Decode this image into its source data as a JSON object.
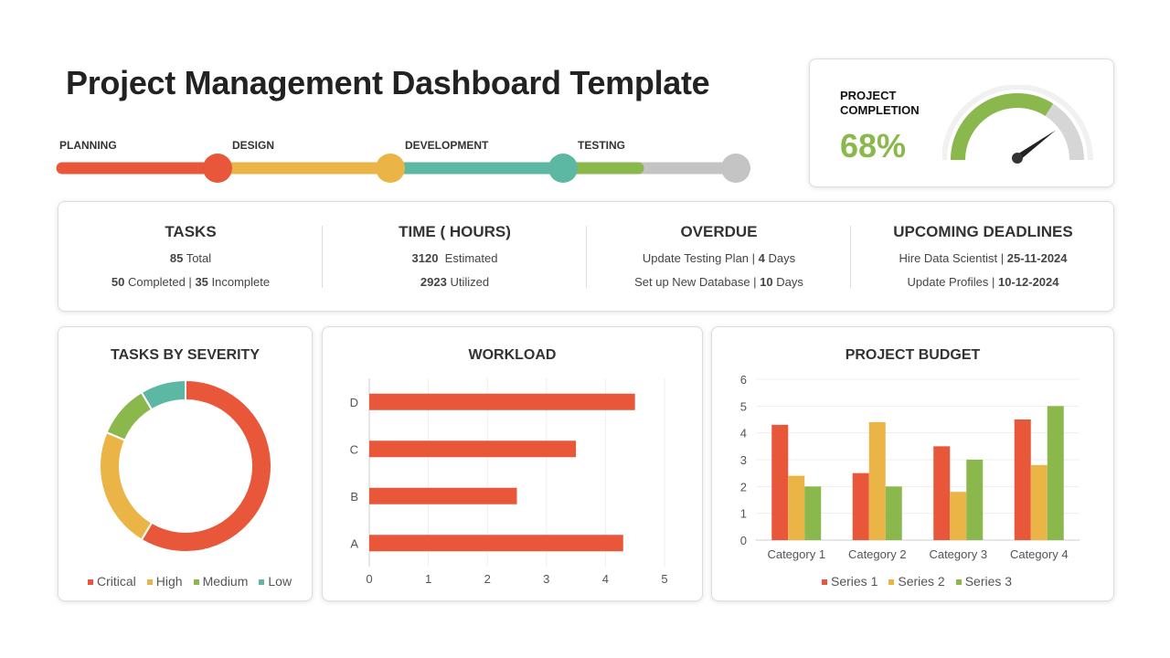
{
  "title": "Project Management Dashboard Template",
  "colors": {
    "red": "#E8573A",
    "yellow": "#EBB447",
    "teal": "#5DB8A3",
    "green": "#8AB84C",
    "gray": "#C4C4C4"
  },
  "phases": [
    {
      "label": "PLANNING",
      "color": "#E8573A"
    },
    {
      "label": "DESIGN",
      "color": "#EBB447"
    },
    {
      "label": "DEVELOPMENT",
      "color": "#5DB8A3"
    },
    {
      "label": "TESTING",
      "color": "#8AB84C"
    }
  ],
  "completion": {
    "label_line1": "PROJECT",
    "label_line2": "COMPLETION",
    "value_text": "68%",
    "percent": 68
  },
  "stats": {
    "tasks": {
      "title": "TASKS",
      "total": "85",
      "total_label": " Total",
      "completed": "50",
      "completed_label": " Completed | ",
      "incomplete": "35",
      "incomplete_label": " Incomplete"
    },
    "time": {
      "title": "TIME ( HOURS)",
      "estimated": "3120",
      "estimated_label": "  Estimated",
      "utilized": "2923",
      "utilized_label": " Utilized"
    },
    "overdue": {
      "title": "OVERDUE",
      "item1": "Update Testing Plan | ",
      "item1_val": "4",
      "item1_unit": " Days",
      "item2": "Set up New Database | ",
      "item2_val": "10",
      "item2_unit": " Days"
    },
    "deadlines": {
      "title": "UPCOMING DEADLINES",
      "item1": "Hire Data Scientist | ",
      "item1_date": "25-11-2024",
      "item2": "Update Profiles | ",
      "item2_date": "10-12-2024"
    }
  },
  "chart_data": [
    {
      "type": "pie",
      "title": "TASKS BY SEVERITY",
      "donut": true,
      "categories": [
        "Critical",
        "High",
        "Medium",
        "Low"
      ],
      "values": [
        8.2,
        3.2,
        1.4,
        1.2
      ],
      "colors": [
        "#E8573A",
        "#EBB447",
        "#8AB84C",
        "#5DB8A3"
      ],
      "legend": "bottom"
    },
    {
      "type": "bar",
      "orientation": "horizontal",
      "title": "WORKLOAD",
      "categories": [
        "A",
        "B",
        "C",
        "D"
      ],
      "values": [
        4.3,
        2.5,
        3.5,
        4.5
      ],
      "xlim": [
        0,
        5
      ],
      "xticks": [
        "0",
        "1",
        "2",
        "3",
        "4",
        "5"
      ],
      "color": "#E8573A",
      "grid": true
    },
    {
      "type": "bar",
      "title": "PROJECT BUDGET",
      "categories": [
        "Category 1",
        "Category 2",
        "Category 3",
        "Category 4"
      ],
      "series": [
        {
          "name": "Series 1",
          "values": [
            4.3,
            2.5,
            3.5,
            4.5
          ],
          "color": "#E8573A"
        },
        {
          "name": "Series 2",
          "values": [
            2.4,
            4.4,
            1.8,
            2.8
          ],
          "color": "#EBB447"
        },
        {
          "name": "Series 3",
          "values": [
            2,
            2,
            3,
            5
          ],
          "color": "#8AB84C"
        }
      ],
      "ylim": [
        0,
        6
      ],
      "yticks": [
        "0",
        "1",
        "2",
        "3",
        "4",
        "5",
        "6"
      ],
      "grid": true,
      "legend": "bottom"
    }
  ]
}
